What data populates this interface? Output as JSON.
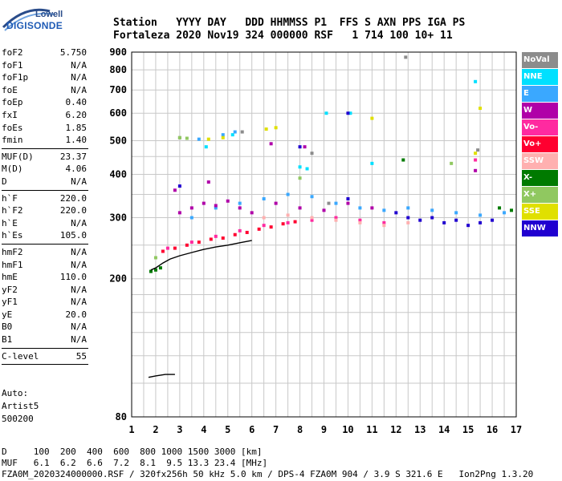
{
  "logo": {
    "top": "Lowell",
    "bottom": "DIGISONDE"
  },
  "header": {
    "line1": "Station   YYYY DAY   DDD HHMMSS P1  FFS S AXN PPS IGA PS",
    "line2": "Fortaleza 2020 Nov19 324 000000 RSF   1 714 100 10+ 11"
  },
  "params": [
    {
      "label": "foF2",
      "value": "5.750"
    },
    {
      "label": "foF1",
      "value": "N/A"
    },
    {
      "label": "foF1p",
      "value": "N/A"
    },
    {
      "label": "foE",
      "value": "N/A"
    },
    {
      "label": "foEp",
      "value": "0.40"
    },
    {
      "label": "fxI",
      "value": "6.20"
    },
    {
      "label": "foEs",
      "value": "1.85"
    },
    {
      "label": "fmin",
      "value": "1.40"
    },
    {
      "sep": true
    },
    {
      "label": "MUF(D)",
      "value": "23.37"
    },
    {
      "label": "M(D)",
      "value": "4.06"
    },
    {
      "label": "D",
      "value": "N/A"
    },
    {
      "sep": true
    },
    {
      "label": "h`F",
      "value": "220.0"
    },
    {
      "label": "h`F2",
      "value": "220.0"
    },
    {
      "label": "h`E",
      "value": "N/A"
    },
    {
      "label": "h`Es",
      "value": "105.0"
    },
    {
      "sep": true
    },
    {
      "label": "hmF2",
      "value": "N/A"
    },
    {
      "label": "hmF1",
      "value": "N/A"
    },
    {
      "label": "hmE",
      "value": "110.0"
    },
    {
      "label": "yF2",
      "value": "N/A"
    },
    {
      "label": "yF1",
      "value": "N/A"
    },
    {
      "label": "yE",
      "value": "20.0"
    },
    {
      "label": "B0",
      "value": "N/A"
    },
    {
      "label": "B1",
      "value": "N/A"
    },
    {
      "sep": true
    },
    {
      "label": "C-level",
      "value": "55"
    },
    {
      "sep": true
    }
  ],
  "auto": {
    "line1": "Auto:",
    "line2": "Artist5",
    "line3": "500200"
  },
  "legend": [
    {
      "label": "NoVal",
      "color": "#8c8c8c"
    },
    {
      "label": "NNE",
      "color": "#00e0ff"
    },
    {
      "label": "E",
      "color": "#3aa8ff"
    },
    {
      "label": "W",
      "color": "#b000a8"
    },
    {
      "label": "Vo-",
      "color": "#ff2aa0"
    },
    {
      "label": "Vo+",
      "color": "#ff0030"
    },
    {
      "label": "SSW",
      "color": "#ffb0b0"
    },
    {
      "label": "X-",
      "color": "#007a00"
    },
    {
      "label": "X+",
      "color": "#90c860"
    },
    {
      "label": "SSE",
      "color": "#e0e000"
    },
    {
      "label": "NNW",
      "color": "#2000d0"
    }
  ],
  "chart_data": {
    "type": "scatter",
    "xlabel": "",
    "ylabel": "",
    "xlim": [
      1,
      17
    ],
    "ylim": [
      80,
      900
    ],
    "yscale": "log",
    "xticks": [
      1,
      2,
      3,
      4,
      5,
      6,
      7,
      8,
      9,
      10,
      11,
      12,
      13,
      14,
      15,
      16,
      17
    ],
    "yticks": [
      80,
      200,
      300,
      400,
      500,
      600,
      700,
      800,
      900
    ],
    "grid": true,
    "series": [
      {
        "name": "NoVal",
        "points": [
          [
            3.0,
            510
          ],
          [
            5.6,
            530
          ],
          [
            8.5,
            460
          ],
          [
            15.4,
            470
          ],
          [
            9.2,
            330
          ],
          [
            12.4,
            870
          ]
        ]
      },
      {
        "name": "NNE",
        "points": [
          [
            8.0,
            420
          ],
          [
            8.3,
            415
          ],
          [
            4.1,
            480
          ],
          [
            5.2,
            520
          ],
          [
            10.1,
            600
          ],
          [
            11.0,
            430
          ],
          [
            15.3,
            740
          ],
          [
            9.1,
            600
          ]
        ]
      },
      {
        "name": "E",
        "points": [
          [
            3.5,
            300
          ],
          [
            4.5,
            320
          ],
          [
            5.5,
            330
          ],
          [
            6.5,
            340
          ],
          [
            7.5,
            350
          ],
          [
            8.5,
            345
          ],
          [
            9.5,
            330
          ],
          [
            10.5,
            320
          ],
          [
            11.5,
            315
          ],
          [
            12.5,
            320
          ],
          [
            13.5,
            315
          ],
          [
            14.5,
            310
          ],
          [
            15.5,
            305
          ],
          [
            16.5,
            310
          ],
          [
            4.8,
            520
          ],
          [
            5.3,
            530
          ],
          [
            3.8,
            505
          ]
        ]
      },
      {
        "name": "W",
        "points": [
          [
            3.0,
            310
          ],
          [
            3.5,
            320
          ],
          [
            4.0,
            330
          ],
          [
            4.5,
            325
          ],
          [
            5.0,
            335
          ],
          [
            5.5,
            320
          ],
          [
            6.0,
            310
          ],
          [
            7.0,
            330
          ],
          [
            8.0,
            320
          ],
          [
            9.0,
            315
          ],
          [
            10.0,
            330
          ],
          [
            11.0,
            320
          ],
          [
            2.8,
            360
          ],
          [
            4.2,
            380
          ],
          [
            6.8,
            490
          ],
          [
            8.2,
            480
          ],
          [
            15.3,
            410
          ]
        ]
      },
      {
        "name": "Vo-",
        "points": [
          [
            2.5,
            245
          ],
          [
            3.5,
            255
          ],
          [
            4.5,
            265
          ],
          [
            5.5,
            275
          ],
          [
            6.5,
            285
          ],
          [
            7.5,
            290
          ],
          [
            8.5,
            295
          ],
          [
            9.5,
            300
          ],
          [
            10.5,
            295
          ],
          [
            11.5,
            290
          ],
          [
            15.3,
            440
          ]
        ]
      },
      {
        "name": "Vo+",
        "points": [
          [
            2.3,
            240
          ],
          [
            2.8,
            245
          ],
          [
            3.3,
            250
          ],
          [
            3.8,
            255
          ],
          [
            4.3,
            260
          ],
          [
            4.8,
            262
          ],
          [
            5.3,
            268
          ],
          [
            5.8,
            272
          ],
          [
            6.3,
            278
          ],
          [
            6.8,
            282
          ],
          [
            7.3,
            288
          ],
          [
            7.8,
            292
          ]
        ]
      },
      {
        "name": "SSW",
        "points": [
          [
            6.5,
            300
          ],
          [
            7.5,
            305
          ],
          [
            8.5,
            300
          ],
          [
            9.5,
            295
          ],
          [
            10.5,
            290
          ],
          [
            11.5,
            285
          ],
          [
            12.5,
            290
          ]
        ]
      },
      {
        "name": "X-",
        "points": [
          [
            1.8,
            210
          ],
          [
            2.0,
            212
          ],
          [
            2.2,
            215
          ],
          [
            16.3,
            320
          ],
          [
            16.8,
            315
          ],
          [
            12.3,
            440
          ]
        ]
      },
      {
        "name": "X+",
        "points": [
          [
            2.0,
            230
          ],
          [
            3.0,
            510
          ],
          [
            3.3,
            508
          ],
          [
            8.0,
            390
          ],
          [
            14.3,
            430
          ]
        ]
      },
      {
        "name": "SSE",
        "points": [
          [
            4.2,
            505
          ],
          [
            4.8,
            510
          ],
          [
            6.6,
            540
          ],
          [
            7.0,
            545
          ],
          [
            11.0,
            580
          ],
          [
            15.5,
            620
          ],
          [
            15.3,
            460
          ]
        ]
      },
      {
        "name": "NNW",
        "points": [
          [
            3.0,
            370
          ],
          [
            10.0,
            340
          ],
          [
            12.0,
            310
          ],
          [
            12.5,
            300
          ],
          [
            13.0,
            295
          ],
          [
            13.5,
            300
          ],
          [
            14.0,
            290
          ],
          [
            14.5,
            295
          ],
          [
            15.0,
            285
          ],
          [
            15.5,
            290
          ],
          [
            16.0,
            295
          ],
          [
            8.0,
            480
          ],
          [
            10.0,
            600
          ]
        ]
      }
    ],
    "f_trace": [
      [
        1.8,
        212
      ],
      [
        2.0,
        215
      ],
      [
        2.3,
        222
      ],
      [
        2.6,
        228
      ],
      [
        3.0,
        233
      ],
      [
        3.5,
        238
      ],
      [
        4.0,
        243
      ],
      [
        4.5,
        247
      ],
      [
        5.0,
        250
      ],
      [
        5.5,
        254
      ],
      [
        6.0,
        258
      ]
    ],
    "es_trace": [
      [
        1.7,
        104
      ],
      [
        2.0,
        105
      ],
      [
        2.4,
        106
      ],
      [
        2.8,
        106
      ]
    ]
  },
  "footer": {
    "line1": "D     100  200  400  600  800 1000 1500 3000 [km]",
    "line2": "MUF   6.1  6.2  6.6  7.2  8.1  9.5 13.3 23.4 [MHz]",
    "line3": "FZA0M_2020324000000.RSF / 320fx256h 50 kHz 5.0 km / DPS-4 FZA0M 904 / 3.9 S 321.6 E   Ion2Png 1.3.20"
  }
}
